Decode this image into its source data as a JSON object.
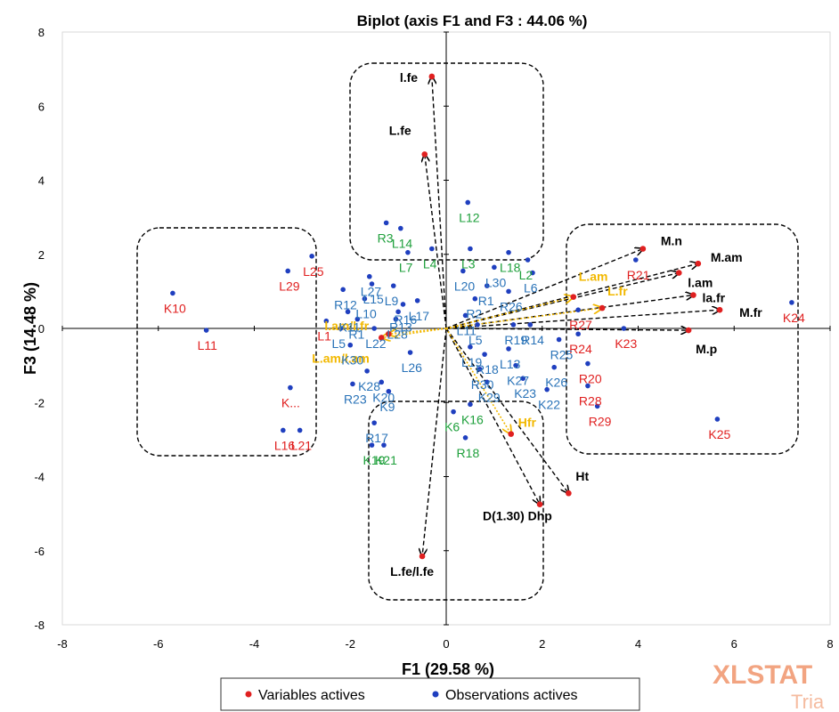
{
  "chart_data": {
    "type": "scatter",
    "title": "Biplot (axis F1 and F3 : 44.06 %)",
    "xlabel": "F1 (29.58 %)",
    "ylabel": "F3 (14.48 %)",
    "xlim": [
      -8,
      8
    ],
    "ylim": [
      -8,
      8
    ],
    "xticks": [
      "-8",
      "-6",
      "-4",
      "-2",
      "0",
      "2",
      "4",
      "6",
      "8"
    ],
    "yticks": [
      "8",
      "6",
      "4",
      "2",
      "0",
      "-2",
      "-4",
      "-6",
      "-8"
    ],
    "grid": false,
    "legend_position": "bottom",
    "legend": [
      {
        "label": "Variables actives",
        "color": "#e02020"
      },
      {
        "label": "Observations actives",
        "color": "#1f3fbf"
      }
    ],
    "colors": {
      "variable": "#e02020",
      "observation": "#1f3fbf",
      "label_red": "#e02020",
      "label_blue": "#2a73b8",
      "label_green": "#1fa03c",
      "label_orange": "#f2b800",
      "label_black": "#000000"
    },
    "watermark": {
      "line1": "XLSTAT",
      "line2": "Tria"
    },
    "variables": [
      {
        "name": "l.fe",
        "x": -0.3,
        "y": 6.8,
        "color": "black"
      },
      {
        "name": "L.fe",
        "x": -0.45,
        "y": 4.7,
        "color": "black"
      },
      {
        "name": "L.fe/l.fe",
        "x": -0.5,
        "y": -6.15,
        "color": "black"
      },
      {
        "name": "D(1.30) Dhp",
        "x": 1.95,
        "y": -4.75,
        "color": "black"
      },
      {
        "name": "Ht",
        "x": 2.55,
        "y": -4.45,
        "color": "black"
      },
      {
        "name": "M.n",
        "x": 4.1,
        "y": 2.15,
        "color": "black"
      },
      {
        "name": "M.am",
        "x": 5.25,
        "y": 1.75,
        "color": "black"
      },
      {
        "name": "l.am",
        "x": 4.85,
        "y": 1.5,
        "color": "black"
      },
      {
        "name": "la.fr",
        "x": 5.15,
        "y": 0.9,
        "color": "black"
      },
      {
        "name": "M.fr",
        "x": 5.7,
        "y": 0.5,
        "color": "black"
      },
      {
        "name": "M.p",
        "x": 5.05,
        "y": -0.05,
        "color": "black"
      },
      {
        "name": "L.am",
        "x": 2.65,
        "y": 0.85,
        "color": "orange"
      },
      {
        "name": "L.fr",
        "x": 3.25,
        "y": 0.55,
        "color": "orange"
      },
      {
        "name": "Hfr",
        "x": 1.35,
        "y": -2.85,
        "color": "orange"
      },
      {
        "name": "L.am/l.am",
        "x": -1.35,
        "y": -0.25,
        "color": "orange"
      },
      {
        "name": "l.am/l.fr",
        "x": -1.2,
        "y": -0.15,
        "color": "orange"
      }
    ],
    "observations": [
      {
        "name": "K10",
        "x": -5.7,
        "y": 0.95,
        "color": "red"
      },
      {
        "name": "L11",
        "x": -5.0,
        "y": -0.05,
        "color": "red"
      },
      {
        "name": "L25",
        "x": -2.8,
        "y": 1.95,
        "color": "red"
      },
      {
        "name": "L29",
        "x": -3.3,
        "y": 1.55,
        "color": "red"
      },
      {
        "name": "L1",
        "x": -2.5,
        "y": 0.2,
        "color": "red"
      },
      {
        "name": "K...",
        "x": -3.25,
        "y": -1.6,
        "color": "red"
      },
      {
        "name": "L21",
        "x": -3.05,
        "y": -2.75,
        "color": "red"
      },
      {
        "name": "L16",
        "x": -3.4,
        "y": -2.75,
        "color": "red"
      },
      {
        "name": "K24",
        "x": 7.2,
        "y": 0.7,
        "color": "red"
      },
      {
        "name": "R21",
        "x": 3.95,
        "y": 1.85,
        "color": "red"
      },
      {
        "name": "R27",
        "x": 2.75,
        "y": 0.5,
        "color": "red"
      },
      {
        "name": "R24",
        "x": 2.75,
        "y": -0.15,
        "color": "red"
      },
      {
        "name": "K23",
        "x": 3.7,
        "y": 0.0,
        "color": "red"
      },
      {
        "name": "R20",
        "x": 2.95,
        "y": -0.95,
        "color": "red"
      },
      {
        "name": "R28",
        "x": 2.95,
        "y": -1.55,
        "color": "red"
      },
      {
        "name": "R29",
        "x": 3.15,
        "y": -2.1,
        "color": "red"
      },
      {
        "name": "K25",
        "x": 5.65,
        "y": -2.45,
        "color": "red"
      },
      {
        "name": "L12",
        "x": 0.45,
        "y": 3.4,
        "color": "green"
      },
      {
        "name": "R3",
        "x": -1.25,
        "y": 2.85,
        "color": "green"
      },
      {
        "name": "L14",
        "x": -0.95,
        "y": 2.7,
        "color": "green"
      },
      {
        "name": "L3",
        "x": 0.5,
        "y": 2.15,
        "color": "green"
      },
      {
        "name": "L18",
        "x": 1.3,
        "y": 2.05,
        "color": "green"
      },
      {
        "name": "L2",
        "x": 1.7,
        "y": 1.85,
        "color": "green"
      },
      {
        "name": "L7",
        "x": -0.8,
        "y": 2.05,
        "color": "green"
      },
      {
        "name": "L4",
        "x": -0.3,
        "y": 2.15,
        "color": "green"
      },
      {
        "name": "L30",
        "x": 1.0,
        "y": 1.65,
        "color": "blue"
      },
      {
        "name": "L20",
        "x": 0.35,
        "y": 1.55,
        "color": "blue"
      },
      {
        "name": "L6",
        "x": 1.8,
        "y": 1.5,
        "color": "blue"
      },
      {
        "name": "R1",
        "x": 0.85,
        "y": 1.15,
        "color": "blue"
      },
      {
        "name": "R26",
        "x": 1.3,
        "y": 1.0,
        "color": "blue"
      },
      {
        "name": "R2",
        "x": 0.6,
        "y": 0.8,
        "color": "blue"
      },
      {
        "name": "R12",
        "x": -2.15,
        "y": 1.05,
        "color": "blue"
      },
      {
        "name": "L27",
        "x": -1.6,
        "y": 1.4,
        "color": "blue"
      },
      {
        "name": "L15",
        "x": -1.55,
        "y": 1.2,
        "color": "blue"
      },
      {
        "name": "L9",
        "x": -1.1,
        "y": 1.15,
        "color": "blue"
      },
      {
        "name": "L10",
        "x": -1.7,
        "y": 0.8,
        "color": "blue"
      },
      {
        "name": "R16",
        "x": -0.9,
        "y": 0.65,
        "color": "blue"
      },
      {
        "name": "L17",
        "x": -0.6,
        "y": 0.75,
        "color": "blue"
      },
      {
        "name": "K11",
        "x": -2.05,
        "y": 0.45,
        "color": "blue"
      },
      {
        "name": "R13",
        "x": -1.0,
        "y": 0.45,
        "color": "blue"
      },
      {
        "name": "L28",
        "x": -1.05,
        "y": 0.25,
        "color": "blue"
      },
      {
        "name": "L5",
        "x": -2.2,
        "y": 0.0,
        "color": "blue"
      },
      {
        "name": "R1",
        "x": -1.85,
        "y": 0.25,
        "color": "blue"
      },
      {
        "name": "L22",
        "x": -1.5,
        "y": 0.0,
        "color": "blue"
      },
      {
        "name": "K30",
        "x": -2.0,
        "y": -0.45,
        "color": "blue"
      },
      {
        "name": "L26",
        "x": -0.75,
        "y": -0.65,
        "color": "blue"
      },
      {
        "name": "L11",
        "x": 0.4,
        "y": 0.35,
        "color": "blue"
      },
      {
        "name": "L5",
        "x": 0.65,
        "y": 0.1,
        "color": "blue"
      },
      {
        "name": "R19",
        "x": 1.4,
        "y": 0.1,
        "color": "blue"
      },
      {
        "name": "R14",
        "x": 1.75,
        "y": 0.1,
        "color": "blue"
      },
      {
        "name": "L19",
        "x": 0.5,
        "y": -0.5,
        "color": "blue"
      },
      {
        "name": "L13",
        "x": 1.3,
        "y": -0.55,
        "color": "blue"
      },
      {
        "name": "R18",
        "x": 0.8,
        "y": -0.7,
        "color": "blue"
      },
      {
        "name": "R25",
        "x": 2.35,
        "y": -0.3,
        "color": "blue"
      },
      {
        "name": "R30",
        "x": 0.7,
        "y": -1.1,
        "color": "blue"
      },
      {
        "name": "K27",
        "x": 1.45,
        "y": -1.0,
        "color": "blue"
      },
      {
        "name": "K26",
        "x": 2.25,
        "y": -1.05,
        "color": "blue"
      },
      {
        "name": "K29",
        "x": 0.85,
        "y": -1.45,
        "color": "blue"
      },
      {
        "name": "K23",
        "x": 1.6,
        "y": -1.35,
        "color": "blue"
      },
      {
        "name": "K22",
        "x": 2.1,
        "y": -1.65,
        "color": "blue"
      },
      {
        "name": "K28",
        "x": -1.65,
        "y": -1.15,
        "color": "blue"
      },
      {
        "name": "K20",
        "x": -1.35,
        "y": -1.45,
        "color": "blue"
      },
      {
        "name": "R23",
        "x": -1.95,
        "y": -1.5,
        "color": "blue"
      },
      {
        "name": "K9",
        "x": -1.2,
        "y": -1.7,
        "color": "blue"
      },
      {
        "name": "R17",
        "x": -1.5,
        "y": -2.55,
        "color": "blue"
      },
      {
        "name": "K21",
        "x": -1.3,
        "y": -3.15,
        "color": "green"
      },
      {
        "name": "K19",
        "x": -1.55,
        "y": -3.15,
        "color": "green"
      },
      {
        "name": "K16",
        "x": 0.5,
        "y": -2.05,
        "color": "green"
      },
      {
        "name": "K6",
        "x": 0.15,
        "y": -2.25,
        "color": "green"
      },
      {
        "name": "R18",
        "x": 0.4,
        "y": -2.95,
        "color": "green"
      }
    ]
  }
}
